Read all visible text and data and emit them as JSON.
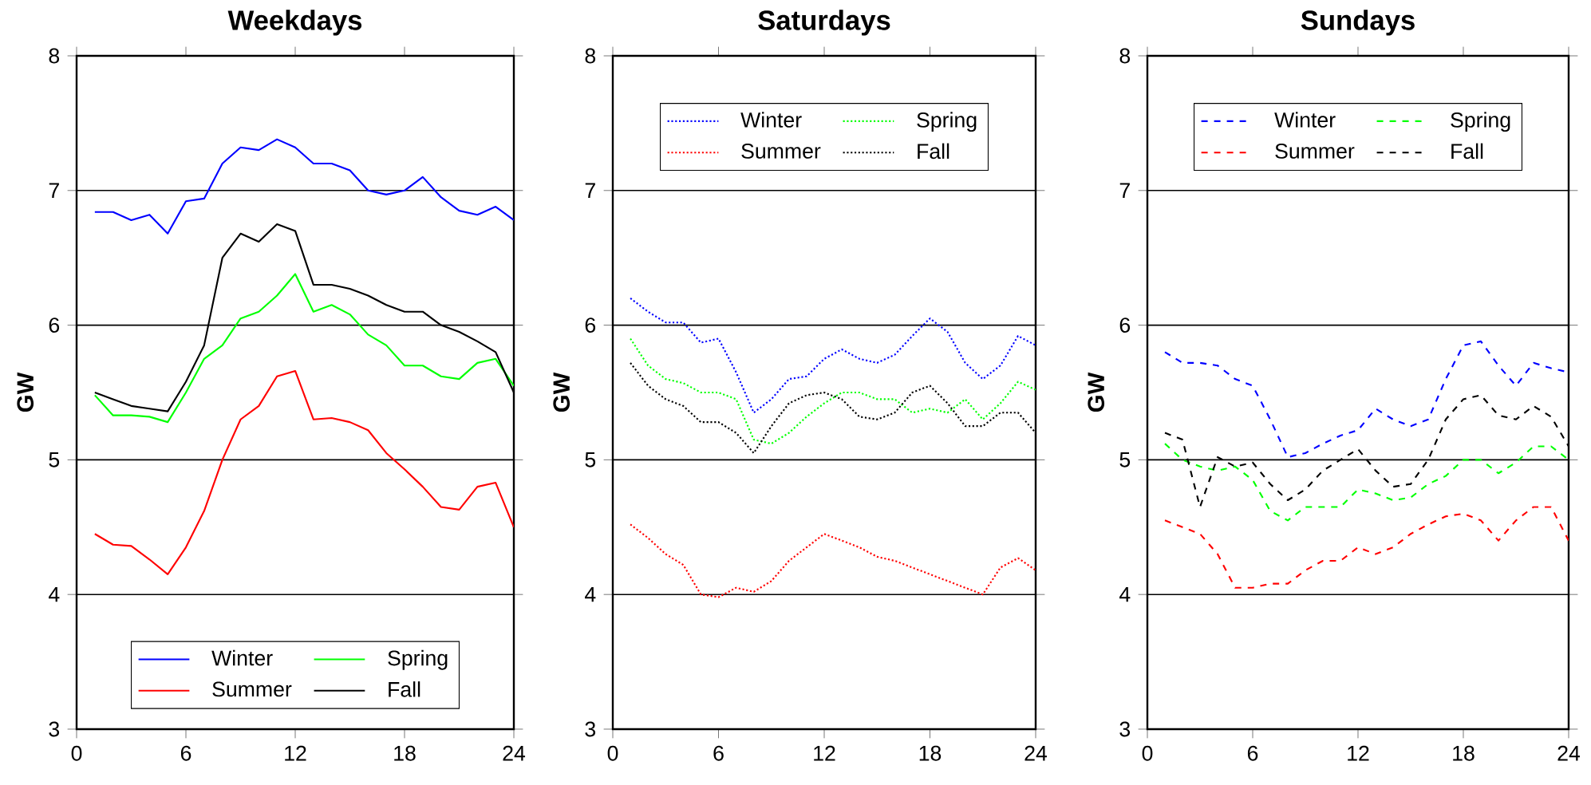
{
  "chart_data": [
    {
      "type": "line",
      "title": "Weekdays",
      "ylabel": "GW",
      "x": [
        1,
        2,
        3,
        4,
        5,
        6,
        7,
        8,
        9,
        10,
        11,
        12,
        13,
        14,
        15,
        16,
        17,
        18,
        19,
        20,
        21,
        22,
        23,
        24
      ],
      "xlim": [
        0,
        24
      ],
      "xticks": [
        0,
        6,
        12,
        18,
        24
      ],
      "ylim": [
        3,
        8
      ],
      "yticks": [
        3,
        4,
        5,
        6,
        7,
        8
      ],
      "grid": "y",
      "legend": "bottom",
      "line_style": "solid",
      "series": [
        {
          "name": "Winter",
          "color": "#0000ff",
          "values": [
            6.84,
            6.84,
            6.78,
            6.82,
            6.68,
            6.92,
            6.94,
            7.2,
            7.32,
            7.3,
            7.38,
            7.32,
            7.2,
            7.2,
            7.15,
            7.0,
            6.97,
            7.0,
            7.1,
            6.95,
            6.85,
            6.82,
            6.88,
            6.78
          ]
        },
        {
          "name": "Spring",
          "color": "#00ff00",
          "values": [
            5.48,
            5.33,
            5.33,
            5.32,
            5.28,
            5.5,
            5.75,
            5.85,
            6.05,
            6.1,
            6.22,
            6.38,
            6.1,
            6.15,
            6.08,
            5.93,
            5.85,
            5.7,
            5.7,
            5.62,
            5.6,
            5.72,
            5.75,
            5.55
          ]
        },
        {
          "name": "Summer",
          "color": "#ff0000",
          "values": [
            4.45,
            4.37,
            4.36,
            4.26,
            4.15,
            4.35,
            4.62,
            5.0,
            5.3,
            5.4,
            5.62,
            5.66,
            5.3,
            5.31,
            5.28,
            5.22,
            5.05,
            4.93,
            4.8,
            4.65,
            4.63,
            4.8,
            4.83,
            4.5
          ]
        },
        {
          "name": "Fall",
          "color": "#000000",
          "values": [
            5.5,
            5.45,
            5.4,
            5.38,
            5.36,
            5.58,
            5.85,
            6.5,
            6.68,
            6.62,
            6.75,
            6.7,
            6.3,
            6.3,
            6.27,
            6.22,
            6.15,
            6.1,
            6.1,
            6.0,
            5.95,
            5.88,
            5.8,
            5.5
          ]
        }
      ]
    },
    {
      "type": "line",
      "title": "Saturdays",
      "ylabel": "GW",
      "x": [
        1,
        2,
        3,
        4,
        5,
        6,
        7,
        8,
        9,
        10,
        11,
        12,
        13,
        14,
        15,
        16,
        17,
        18,
        19,
        20,
        21,
        22,
        23,
        24
      ],
      "xlim": [
        0,
        24
      ],
      "xticks": [
        0,
        6,
        12,
        18,
        24
      ],
      "ylim": [
        3,
        8
      ],
      "yticks": [
        3,
        4,
        5,
        6,
        7,
        8
      ],
      "grid": "y",
      "legend": "top",
      "line_style": "dotted",
      "series": [
        {
          "name": "Winter",
          "color": "#0000ff",
          "values": [
            6.2,
            6.1,
            6.02,
            6.02,
            5.87,
            5.9,
            5.65,
            5.35,
            5.45,
            5.6,
            5.62,
            5.75,
            5.82,
            5.75,
            5.72,
            5.78,
            5.92,
            6.05,
            5.95,
            5.72,
            5.6,
            5.7,
            5.92,
            5.85
          ]
        },
        {
          "name": "Spring",
          "color": "#00ff00",
          "values": [
            5.9,
            5.7,
            5.6,
            5.57,
            5.5,
            5.5,
            5.45,
            5.15,
            5.12,
            5.2,
            5.32,
            5.42,
            5.5,
            5.5,
            5.45,
            5.45,
            5.35,
            5.38,
            5.35,
            5.45,
            5.3,
            5.42,
            5.58,
            5.52
          ]
        },
        {
          "name": "Summer",
          "color": "#ff0000",
          "values": [
            4.52,
            4.42,
            4.3,
            4.22,
            4.0,
            3.98,
            4.05,
            4.02,
            4.1,
            4.25,
            4.35,
            4.45,
            4.4,
            4.35,
            4.28,
            4.25,
            4.2,
            4.15,
            4.1,
            4.05,
            4.0,
            4.2,
            4.27,
            4.18
          ]
        },
        {
          "name": "Fall",
          "color": "#000000",
          "values": [
            5.72,
            5.55,
            5.45,
            5.4,
            5.28,
            5.28,
            5.2,
            5.05,
            5.25,
            5.42,
            5.48,
            5.5,
            5.45,
            5.32,
            5.3,
            5.35,
            5.5,
            5.55,
            5.42,
            5.25,
            5.25,
            5.35,
            5.35,
            5.2
          ]
        }
      ]
    },
    {
      "type": "line",
      "title": "Sundays",
      "ylabel": "GW",
      "x": [
        1,
        2,
        3,
        4,
        5,
        6,
        7,
        8,
        9,
        10,
        11,
        12,
        13,
        14,
        15,
        16,
        17,
        18,
        19,
        20,
        21,
        22,
        23,
        24
      ],
      "xlim": [
        0,
        24
      ],
      "xticks": [
        0,
        6,
        12,
        18,
        24
      ],
      "ylim": [
        3,
        8
      ],
      "yticks": [
        3,
        4,
        5,
        6,
        7,
        8
      ],
      "grid": "y",
      "legend": "top",
      "line_style": "dashed",
      "series": [
        {
          "name": "Winter",
          "color": "#0000ff",
          "values": [
            5.8,
            5.72,
            5.72,
            5.7,
            5.6,
            5.55,
            5.3,
            5.02,
            5.05,
            5.12,
            5.18,
            5.22,
            5.38,
            5.3,
            5.25,
            5.3,
            5.6,
            5.85,
            5.88,
            5.7,
            5.55,
            5.72,
            5.68,
            5.65
          ]
        },
        {
          "name": "Spring",
          "color": "#00ff00",
          "values": [
            5.12,
            5.0,
            4.95,
            4.92,
            4.95,
            4.85,
            4.62,
            4.55,
            4.65,
            4.65,
            4.65,
            4.78,
            4.75,
            4.7,
            4.72,
            4.82,
            4.88,
            5.0,
            5.0,
            4.9,
            4.98,
            5.1,
            5.1,
            5.0
          ]
        },
        {
          "name": "Summer",
          "color": "#ff0000",
          "values": [
            4.55,
            4.5,
            4.45,
            4.3,
            4.05,
            4.05,
            4.08,
            4.08,
            4.18,
            4.25,
            4.25,
            4.35,
            4.3,
            4.35,
            4.45,
            4.52,
            4.58,
            4.6,
            4.55,
            4.4,
            4.55,
            4.65,
            4.65,
            4.4
          ]
        },
        {
          "name": "Fall",
          "color": "#000000",
          "values": [
            5.2,
            5.15,
            4.65,
            5.02,
            4.95,
            4.98,
            4.82,
            4.7,
            4.78,
            4.92,
            5.0,
            5.08,
            4.92,
            4.8,
            4.82,
            5.0,
            5.3,
            5.45,
            5.48,
            5.33,
            5.3,
            5.4,
            5.32,
            5.1
          ]
        }
      ]
    }
  ]
}
